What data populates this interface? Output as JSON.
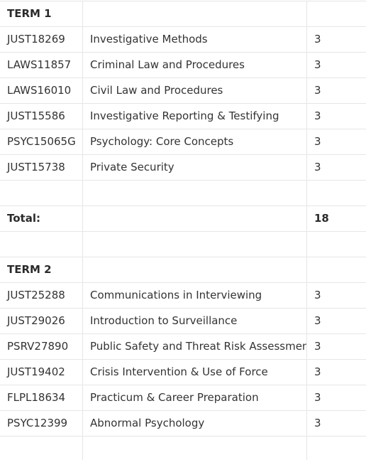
{
  "terms": [
    {
      "heading": "TERM 1",
      "courses": [
        {
          "code": "JUST18269",
          "title": "Investigative Methods",
          "credits": "3"
        },
        {
          "code": "LAWS11857",
          "title": "Criminal Law and Procedures",
          "credits": "3"
        },
        {
          "code": "LAWS16010",
          "title": "Civil Law and Procedures",
          "credits": "3"
        },
        {
          "code": "JUST15586",
          "title": "Investigative Reporting & Testifying",
          "credits": "3"
        },
        {
          "code": "PSYC15065G",
          "title": "Psychology: Core Concepts",
          "credits": "3"
        },
        {
          "code": "JUST15738",
          "title": "Private Security",
          "credits": "3"
        }
      ],
      "total_label": "Total:",
      "total_value": "18"
    },
    {
      "heading": "TERM 2",
      "courses": [
        {
          "code": "JUST25288",
          "title": "Communications in Interviewing",
          "credits": "3"
        },
        {
          "code": "JUST29026",
          "title": "Introduction to Surveillance",
          "credits": "3"
        },
        {
          "code": "PSRV27890",
          "title": "Public Safety and Threat Risk Assessments",
          "credits": "3"
        },
        {
          "code": "JUST19402",
          "title": "Crisis Intervention & Use of Force",
          "credits": "3"
        },
        {
          "code": "FLPL18634",
          "title": "Practicum & Career Preparation",
          "credits": "3"
        },
        {
          "code": "PSYC12399",
          "title": "Abnormal Psychology",
          "credits": "3"
        }
      ]
    }
  ]
}
